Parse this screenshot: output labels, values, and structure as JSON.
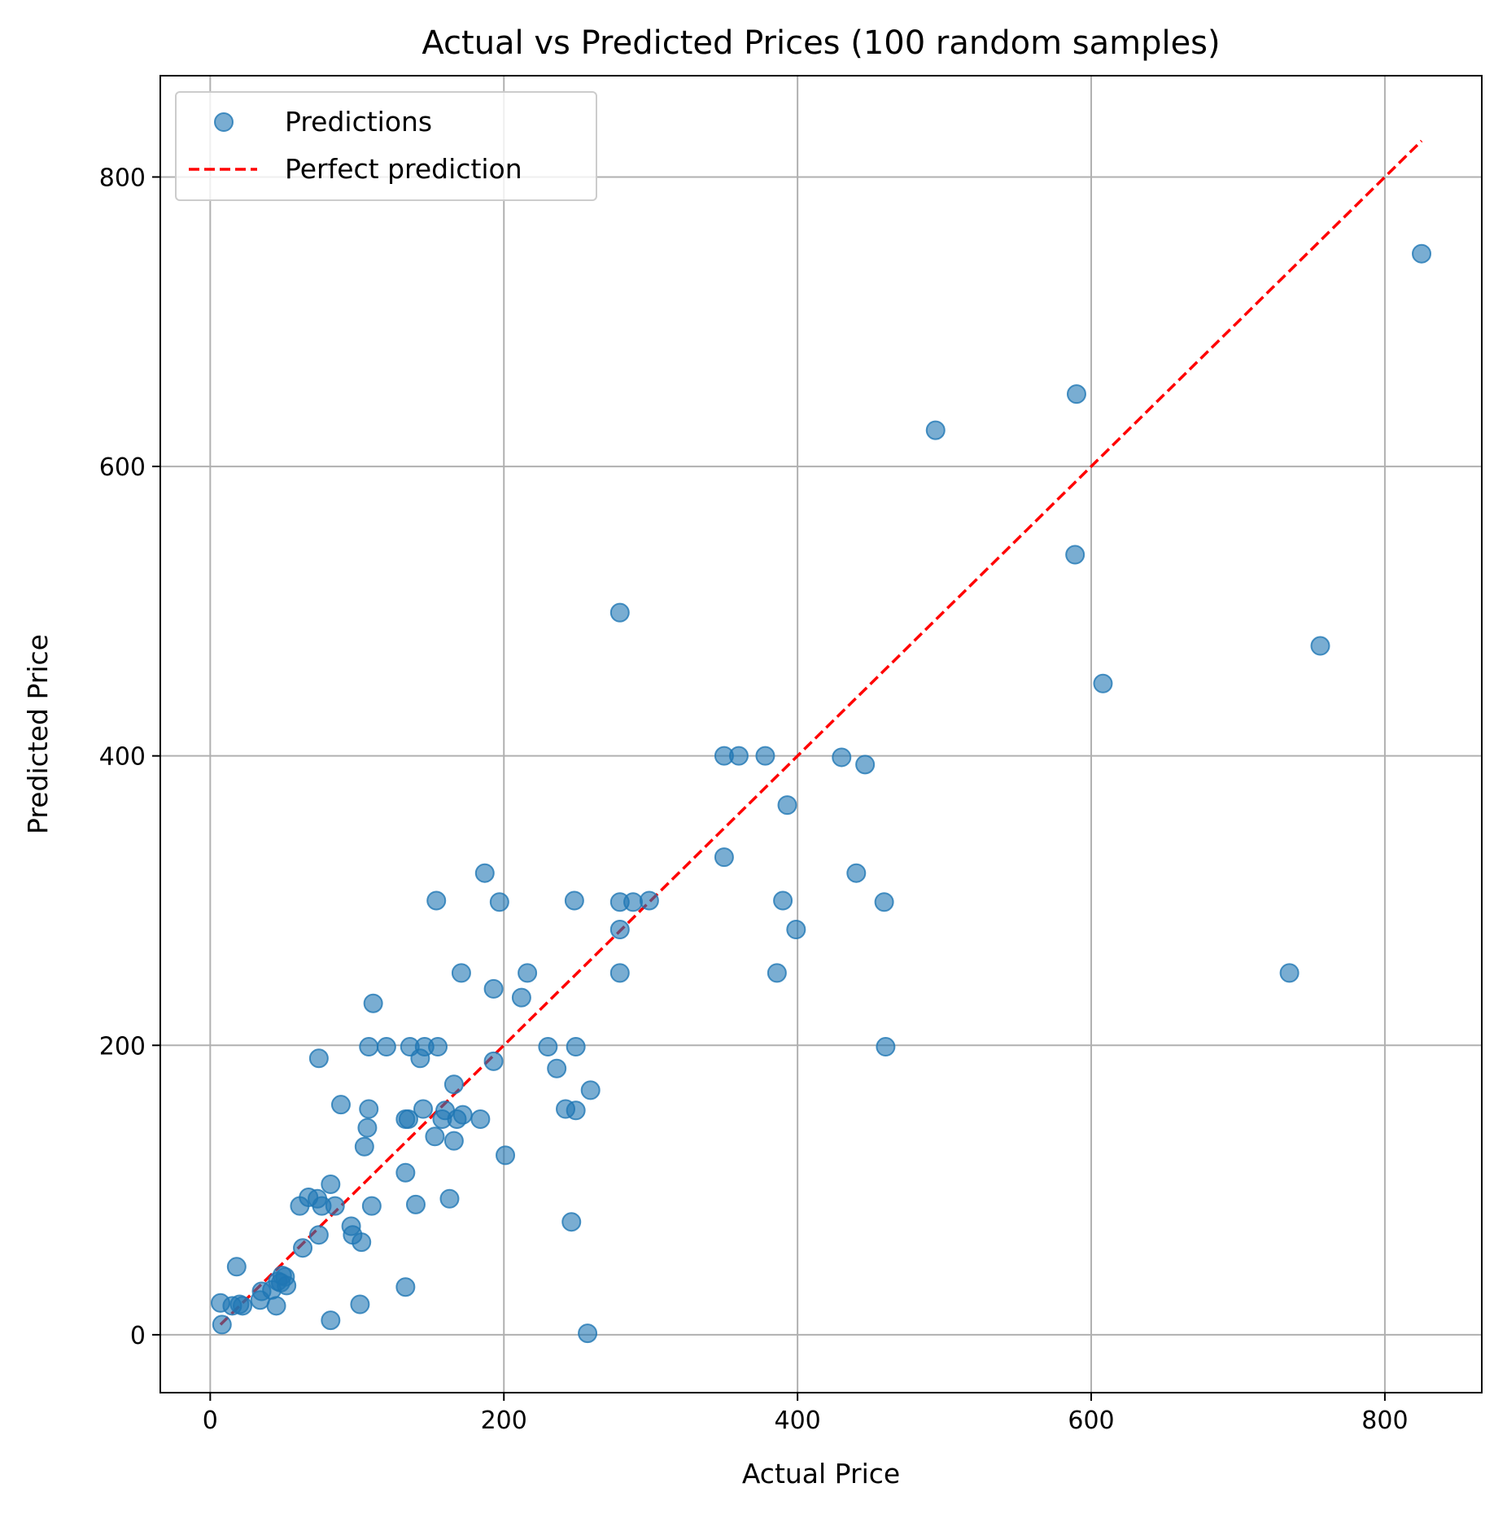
{
  "chart_data": {
    "type": "scatter",
    "title": "Actual vs Predicted Prices (100 random samples)",
    "xlabel": "Actual Price",
    "ylabel": "Predicted Price",
    "xlim": [
      -34,
      866
    ],
    "ylim": [
      -40,
      870
    ],
    "xticks": [
      0,
      200,
      400,
      600,
      800
    ],
    "yticks": [
      0,
      200,
      400,
      600,
      800
    ],
    "grid": true,
    "legend": {
      "position": "top-left",
      "entries": [
        "Predictions",
        "Perfect prediction"
      ]
    },
    "colors": {
      "points": "#1f77b4",
      "line": "#ff0000"
    },
    "series": [
      {
        "name": "Predictions",
        "kind": "scatter",
        "points": [
          [
            825,
            747
          ],
          [
            590,
            650
          ],
          [
            494,
            625
          ],
          [
            589,
            539
          ],
          [
            279,
            499
          ],
          [
            756,
            476
          ],
          [
            608,
            450
          ],
          [
            350,
            400
          ],
          [
            360,
            400
          ],
          [
            378,
            400
          ],
          [
            430,
            399
          ],
          [
            446,
            394
          ],
          [
            393,
            366
          ],
          [
            350,
            330
          ],
          [
            187,
            319
          ],
          [
            440,
            319
          ],
          [
            154,
            300
          ],
          [
            197,
            299
          ],
          [
            248,
            300
          ],
          [
            279,
            299
          ],
          [
            288,
            299
          ],
          [
            299,
            300
          ],
          [
            390,
            300
          ],
          [
            459,
            299
          ],
          [
            279,
            280
          ],
          [
            399,
            280
          ],
          [
            171,
            250
          ],
          [
            216,
            250
          ],
          [
            279,
            250
          ],
          [
            386,
            250
          ],
          [
            735,
            250
          ],
          [
            193,
            239
          ],
          [
            212,
            233
          ],
          [
            111,
            229
          ],
          [
            74,
            191
          ],
          [
            108,
            199
          ],
          [
            120,
            199
          ],
          [
            136,
            199
          ],
          [
            146,
            199
          ],
          [
            155,
            199
          ],
          [
            230,
            199
          ],
          [
            249,
            199
          ],
          [
            460,
            199
          ],
          [
            143,
            191
          ],
          [
            193,
            189
          ],
          [
            236,
            184
          ],
          [
            166,
            173
          ],
          [
            259,
            169
          ],
          [
            89,
            159
          ],
          [
            108,
            156
          ],
          [
            145,
            156
          ],
          [
            160,
            155
          ],
          [
            242,
            156
          ],
          [
            249,
            155
          ],
          [
            133,
            149
          ],
          [
            135,
            149
          ],
          [
            158,
            149
          ],
          [
            168,
            149
          ],
          [
            172,
            152
          ],
          [
            184,
            149
          ],
          [
            107,
            143
          ],
          [
            153,
            137
          ],
          [
            166,
            134
          ],
          [
            105,
            130
          ],
          [
            201,
            124
          ],
          [
            133,
            112
          ],
          [
            82,
            104
          ],
          [
            67,
            95
          ],
          [
            73,
            94
          ],
          [
            61,
            89
          ],
          [
            76,
            89
          ],
          [
            85,
            89
          ],
          [
            110,
            89
          ],
          [
            140,
            90
          ],
          [
            163,
            94
          ],
          [
            96,
            75
          ],
          [
            97,
            69
          ],
          [
            74,
            69
          ],
          [
            103,
            64
          ],
          [
            246,
            78
          ],
          [
            63,
            60
          ],
          [
            18,
            47
          ],
          [
            49,
            41
          ],
          [
            46,
            37
          ],
          [
            52,
            34
          ],
          [
            42,
            31
          ],
          [
            133,
            33
          ],
          [
            35,
            30
          ],
          [
            34,
            24
          ],
          [
            15,
            20
          ],
          [
            20,
            21
          ],
          [
            22,
            20
          ],
          [
            7,
            22
          ],
          [
            45,
            20
          ],
          [
            102,
            21
          ],
          [
            82,
            10
          ],
          [
            8,
            7
          ],
          [
            257,
            1
          ],
          [
            48,
            36
          ],
          [
            51,
            40
          ]
        ]
      },
      {
        "name": "Perfect prediction",
        "kind": "line",
        "dashed": true,
        "points": [
          [
            7,
            7
          ],
          [
            825,
            825
          ]
        ]
      }
    ]
  }
}
